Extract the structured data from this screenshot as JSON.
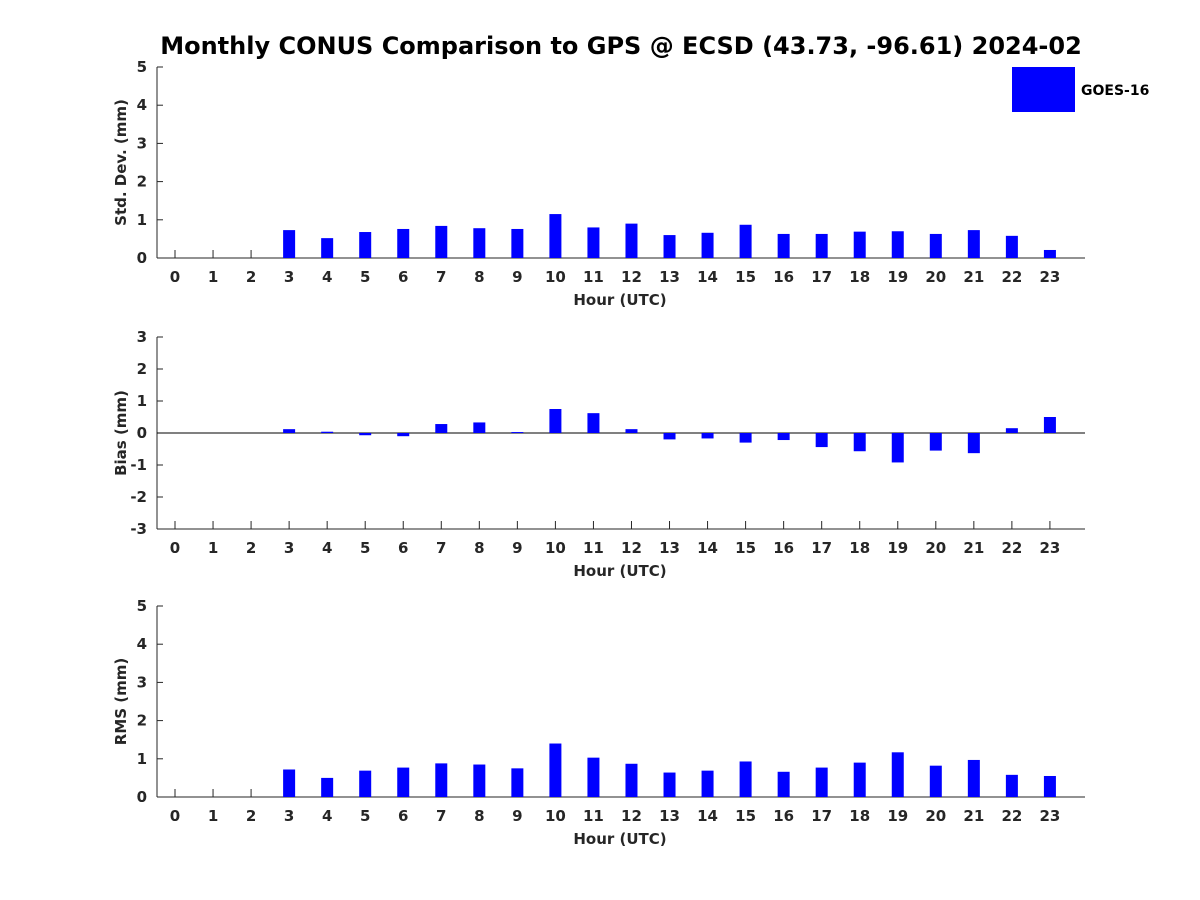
{
  "chart_data": {
    "title": "Monthly CONUS Comparison to GPS @ ECSD (43.73, -96.61) 2024-02",
    "legend": {
      "label": "GOES-16",
      "color": "#0000ff",
      "placement": "top-right"
    },
    "series_color": "#0000ff",
    "panels": [
      {
        "type": "bar",
        "name": "stddev",
        "ylabel": "Std. Dev. (mm)",
        "xlabel": "Hour (UTC)",
        "ylim": [
          0,
          5
        ],
        "yticks": [
          "0",
          "1",
          "2",
          "3",
          "4",
          "5"
        ],
        "categories": [
          "0",
          "1",
          "2",
          "3",
          "4",
          "5",
          "6",
          "7",
          "8",
          "9",
          "10",
          "11",
          "12",
          "13",
          "14",
          "15",
          "16",
          "17",
          "18",
          "19",
          "20",
          "21",
          "22",
          "23"
        ],
        "values": [
          null,
          null,
          null,
          0.73,
          0.52,
          0.68,
          0.76,
          0.84,
          0.78,
          0.76,
          1.15,
          0.8,
          0.9,
          0.6,
          0.66,
          0.87,
          0.63,
          0.63,
          0.69,
          0.7,
          0.63,
          0.73,
          0.58,
          0.21
        ]
      },
      {
        "type": "bar",
        "name": "bias",
        "ylabel": "Bias (mm)",
        "xlabel": "Hour (UTC)",
        "ylim": [
          -3,
          3
        ],
        "yticks": [
          "-3",
          "-2",
          "-1",
          "0",
          "1",
          "2",
          "3"
        ],
        "categories": [
          "0",
          "1",
          "2",
          "3",
          "4",
          "5",
          "6",
          "7",
          "8",
          "9",
          "10",
          "11",
          "12",
          "13",
          "14",
          "15",
          "16",
          "17",
          "18",
          "19",
          "20",
          "21",
          "22",
          "23"
        ],
        "values": [
          null,
          null,
          null,
          0.12,
          0.04,
          -0.07,
          -0.1,
          0.28,
          0.33,
          0.03,
          0.75,
          0.62,
          0.12,
          -0.2,
          -0.17,
          -0.3,
          -0.22,
          -0.44,
          -0.57,
          -0.92,
          -0.55,
          -0.63,
          0.15,
          0.5
        ]
      },
      {
        "type": "bar",
        "name": "rms",
        "ylabel": "RMS (mm)",
        "xlabel": "Hour (UTC)",
        "ylim": [
          0,
          5
        ],
        "yticks": [
          "0",
          "1",
          "2",
          "3",
          "4",
          "5"
        ],
        "categories": [
          "0",
          "1",
          "2",
          "3",
          "4",
          "5",
          "6",
          "7",
          "8",
          "9",
          "10",
          "11",
          "12",
          "13",
          "14",
          "15",
          "16",
          "17",
          "18",
          "19",
          "20",
          "21",
          "22",
          "23"
        ],
        "values": [
          null,
          null,
          null,
          0.72,
          0.5,
          0.69,
          0.77,
          0.88,
          0.85,
          0.75,
          1.4,
          1.03,
          0.87,
          0.64,
          0.69,
          0.93,
          0.66,
          0.77,
          0.9,
          1.17,
          0.82,
          0.97,
          0.58,
          0.55
        ]
      }
    ]
  }
}
